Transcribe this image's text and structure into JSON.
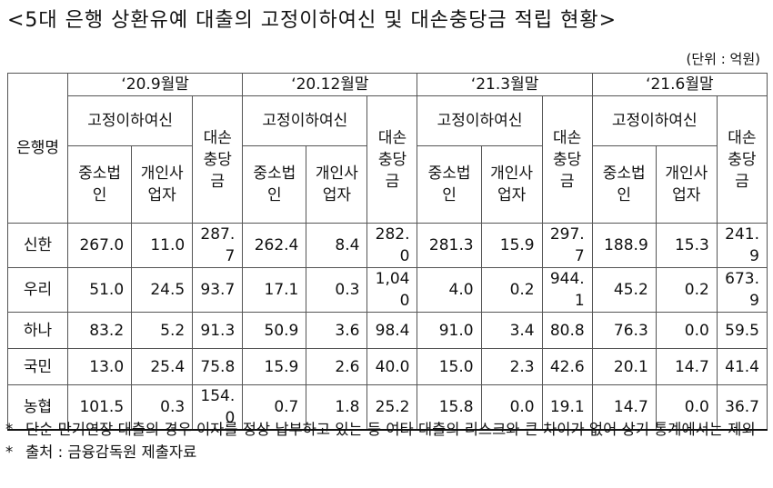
{
  "title": "<5대 은행 상환유예 대출의 고정이하여신 및 대손충당금 적립 현황>",
  "unit": "(단위 : 억원)",
  "table": {
    "bank_header": "은행명",
    "periods": [
      "‘20.9월말",
      "‘20.12월말",
      "‘21.3월말",
      "‘21.6월말"
    ],
    "npl_header": "고정이하여신",
    "sme_header": "중소법인",
    "individual_header": "개인사업자",
    "allowance_header": "대손충당금",
    "rows": [
      [
        "신한",
        "267.0",
        "11.0",
        "287.7",
        "262.4",
        "8.4",
        "282.0",
        "281.3",
        "15.9",
        "297.7",
        "188.9",
        "15.3",
        "241.9"
      ],
      [
        "우리",
        "51.0",
        "24.5",
        "93.7",
        "17.1",
        "0.3",
        "1,040",
        "4.0",
        "0.2",
        "944.1",
        "45.2",
        "0.2",
        "673.9"
      ],
      [
        "하나",
        "83.2",
        "5.2",
        "91.3",
        "50.9",
        "3.6",
        "98.4",
        "91.0",
        "3.4",
        "80.8",
        "76.3",
        "0.0",
        "59.5"
      ],
      [
        "국민",
        "13.0",
        "25.4",
        "75.8",
        "15.9",
        "2.6",
        "40.0",
        "15.0",
        "2.3",
        "42.6",
        "20.1",
        "14.7",
        "41.4"
      ],
      [
        "농협",
        "101.5",
        "0.3",
        "154.0",
        "0.7",
        "1.8",
        "25.2",
        "15.8",
        "0.0",
        "19.1",
        "14.7",
        "0.0",
        "36.7"
      ]
    ]
  },
  "notes": [
    "단순 만기연장 대출의 경우 이자를 정상 납부하고 있는 등 여타 대출의 리스크와 큰 차이가 없어 상기 통계에서는 제외",
    "출처 : 금융감독원 제출자료"
  ]
}
